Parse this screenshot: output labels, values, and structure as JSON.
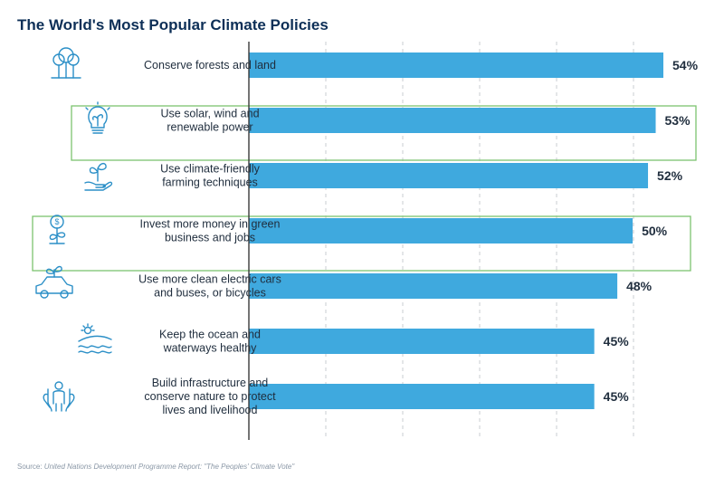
{
  "title": "The World's Most Popular Climate Policies",
  "source": {
    "prefix": "Source: ",
    "text": "United Nations Development Programme Report: \"The Peoples' Climate Vote\""
  },
  "colors": {
    "bar": "#3fa9de",
    "highlight_border": "#7cc46f",
    "icon": "#2b8fc7",
    "title": "#0d2f57",
    "grid": "#c8ccd2",
    "axis": "#3a3a3a"
  },
  "chart_data": {
    "type": "bar",
    "orientation": "horizontal",
    "categories": [
      [
        "Conserve forests and land"
      ],
      [
        "Use solar, wind and",
        "renewable power"
      ],
      [
        "Use climate-friendly",
        "farming techniques"
      ],
      [
        "Invest more money in green",
        "business and jobs"
      ],
      [
        "Use more clean electric cars",
        "and buses, or bicycles"
      ],
      [
        "Keep the ocean and",
        "waterways healthy"
      ],
      [
        "Build infrastructure and",
        "conserve nature to protect",
        "lives and livelihood"
      ]
    ],
    "values": [
      54,
      53,
      52,
      50,
      48,
      45,
      45
    ],
    "value_labels": [
      "54%",
      "53%",
      "52%",
      "50%",
      "48%",
      "45%",
      "45%"
    ],
    "icons": [
      "trees-icon",
      "lightbulb-icon",
      "plant-hand-icon",
      "money-plant-icon",
      "electric-car-icon",
      "ocean-sun-icon",
      "person-hands-icon"
    ],
    "highlighted": [
      false,
      true,
      false,
      true,
      false,
      false,
      false
    ],
    "xlim": [
      0,
      54
    ],
    "grid": true,
    "gridlines_dashed": true,
    "legend": "none"
  }
}
